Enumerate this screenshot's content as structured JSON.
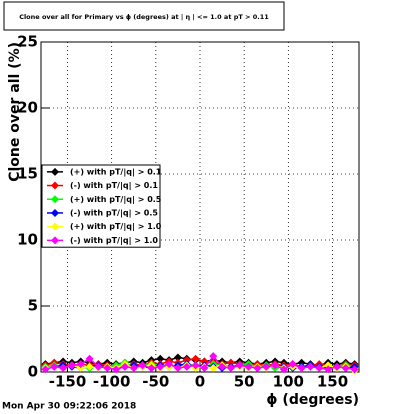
{
  "chart_data": {
    "type": "line",
    "title": "Clone  over all for Primary vs ϕ (degrees) at | η | <= 1.0 at pT > 0.11",
    "x_label": "ϕ (degrees)",
    "y_label": "Clone  over all (%)",
    "timestamp": "Mon Apr 30 09:22:06 2018",
    "xlim": [
      -180,
      180
    ],
    "ylim": [
      0,
      25
    ],
    "xticks": [
      -150,
      -100,
      -50,
      0,
      50,
      100,
      150
    ],
    "yticks": [
      0,
      5,
      10,
      15,
      20,
      25
    ],
    "grid": true,
    "legend_position": "left",
    "x": [
      -175,
      -165,
      -155,
      -145,
      -135,
      -125,
      -115,
      -105,
      -95,
      -85,
      -75,
      -65,
      -55,
      -45,
      -35,
      -25,
      -15,
      -5,
      5,
      15,
      25,
      35,
      45,
      55,
      65,
      75,
      85,
      95,
      105,
      115,
      125,
      135,
      145,
      155,
      165,
      175
    ],
    "series": [
      {
        "name": "(+) with pT/|q| > 0.1",
        "color": "#000000",
        "values": [
          0.6,
          0.7,
          0.8,
          0.7,
          0.8,
          0.7,
          0.6,
          0.7,
          0.6,
          0.7,
          0.8,
          0.7,
          0.9,
          1.0,
          0.9,
          1.1,
          1.0,
          0.9,
          0.8,
          0.9,
          0.8,
          0.7,
          0.8,
          0.7,
          0.6,
          0.7,
          0.8,
          0.7,
          0.6,
          0.7,
          0.6,
          0.5,
          0.7,
          0.6,
          0.7,
          0.6
        ]
      },
      {
        "name": "(-) with pT/|q| > 0.1",
        "color": "#ff0000",
        "values": [
          0.5,
          0.7,
          0.6,
          0.5,
          0.6,
          0.5,
          0.6,
          0.5,
          0.4,
          0.5,
          0.6,
          0.5,
          0.7,
          0.6,
          0.8,
          0.7,
          0.9,
          1.0,
          0.8,
          0.7,
          0.6,
          0.7,
          0.6,
          0.5,
          0.6,
          0.5,
          0.6,
          0.5,
          0.6,
          0.4,
          0.5,
          0.6,
          0.5,
          0.4,
          0.6,
          0.5
        ]
      },
      {
        "name": "(+) with pT/|q| > 0.5",
        "color": "#00ff00",
        "values": [
          0.4,
          0.5,
          0.4,
          0.5,
          0.4,
          0.3,
          0.5,
          0.4,
          0.5,
          0.7,
          0.4,
          0.5,
          0.6,
          0.5,
          0.4,
          0.5,
          0.6,
          0.5,
          0.4,
          0.6,
          0.5,
          0.4,
          0.5,
          0.6,
          0.4,
          0.5,
          0.3,
          0.4,
          0.5,
          0.4,
          0.5,
          0.4,
          0.3,
          0.4,
          0.5,
          0.4
        ]
      },
      {
        "name": "(-) with pT/|q| > 0.5",
        "color": "#0000ff",
        "values": [
          0.3,
          0.4,
          0.5,
          0.4,
          0.3,
          0.4,
          0.5,
          0.4,
          0.3,
          0.4,
          0.5,
          0.4,
          0.3,
          0.5,
          0.4,
          0.5,
          0.6,
          0.4,
          0.5,
          0.4,
          0.3,
          0.4,
          0.5,
          0.4,
          0.3,
          0.4,
          0.5,
          0.4,
          0.3,
          0.4,
          0.5,
          0.4,
          0.3,
          0.4,
          0.3,
          0.4
        ]
      },
      {
        "name": "(+) with pT/|q| > 1.0",
        "color": "#ffff00",
        "values": [
          0.3,
          0.4,
          0.3,
          0.5,
          0.3,
          0.4,
          0.3,
          0.4,
          0.3,
          0.6,
          0.3,
          0.4,
          0.5,
          0.3,
          0.4,
          0.3,
          0.5,
          0.3,
          0.4,
          0.3,
          0.5,
          0.3,
          0.4,
          0.3,
          0.4,
          0.3,
          0.5,
          0.3,
          0.4,
          0.3,
          0.4,
          0.3,
          0.5,
          0.3,
          0.4,
          0.1
        ]
      },
      {
        "name": "(-) with pT/|q| > 1.0",
        "color": "#ff00ff",
        "values": [
          0.2,
          0.4,
          0.3,
          0.5,
          0.6,
          1.0,
          0.4,
          0.3,
          0.2,
          0.4,
          0.3,
          0.5,
          0.3,
          0.4,
          0.6,
          0.3,
          0.4,
          0.5,
          0.3,
          1.2,
          0.4,
          0.3,
          0.5,
          0.4,
          0.3,
          0.4,
          0.5,
          0.2,
          0.6,
          0.3,
          0.4,
          0.3,
          0.2,
          0.4,
          0.3,
          0.2
        ]
      }
    ]
  }
}
